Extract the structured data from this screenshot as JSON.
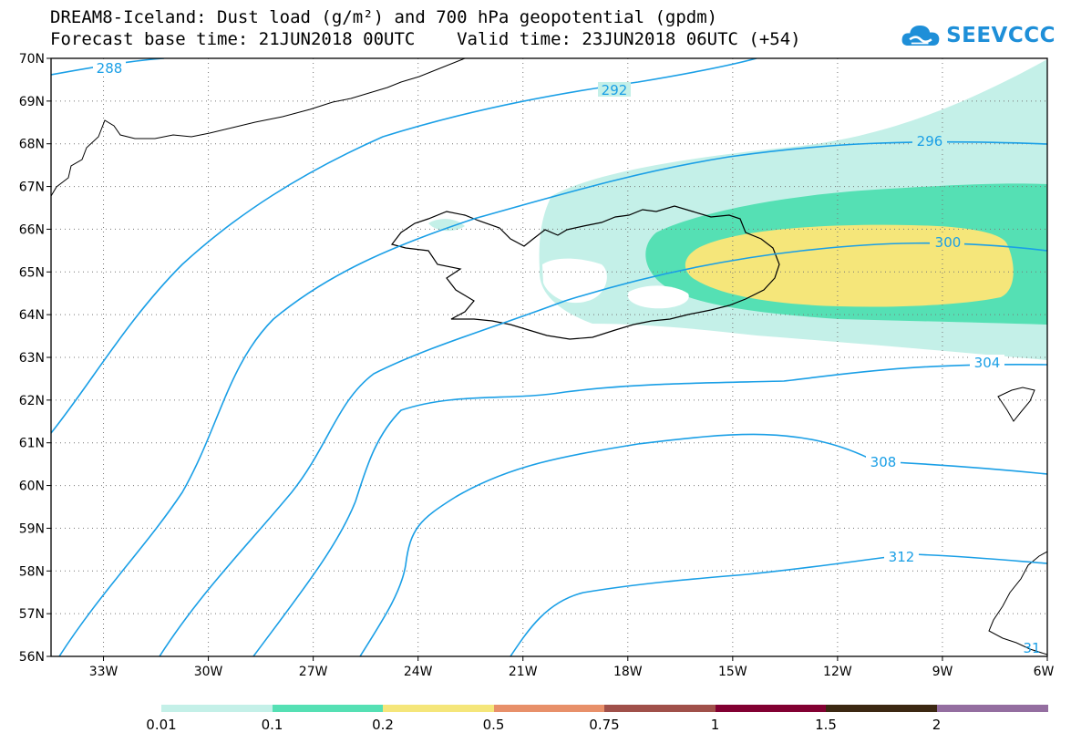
{
  "title": {
    "line1": "DREAM8-Iceland: Dust load (g/m²) and 700 hPa geopotential (gpdm)",
    "line2": "Forecast base time: 21JUN2018 00UTC    Valid time: 23JUN2018 06UTC (+54)"
  },
  "logo": {
    "text": "SEEVCCC",
    "icon": "cloud-logo-icon"
  },
  "map": {
    "lon_range": [
      -34.5,
      -6
    ],
    "lat_range": [
      56,
      70
    ],
    "lon_ticks": [
      "33W",
      "30W",
      "27W",
      "24W",
      "21W",
      "18W",
      "15W",
      "12W",
      "9W",
      "6W"
    ],
    "lat_ticks": [
      "70N",
      "69N",
      "68N",
      "67N",
      "66N",
      "65N",
      "64N",
      "63N",
      "62N",
      "61N",
      "60N",
      "59N",
      "58N",
      "57N",
      "56N"
    ],
    "grid": true,
    "contour_labels": [
      "288",
      "292",
      "296",
      "300",
      "304",
      "308",
      "312",
      "31"
    ],
    "contour_color": "#1a9fe6",
    "dust_colors": {
      "0.01": "#c4f0e8",
      "0.1": "#55e0b4",
      "0.2": "#f5e67a"
    }
  },
  "colorbar": {
    "labels": [
      "0.01",
      "0.1",
      "0.2",
      "0.5",
      "0.75",
      "1",
      "1.5",
      "2"
    ],
    "colors": [
      "#c4f0e8",
      "#55e0b4",
      "#f5e67a",
      "#e8906a",
      "#a0504a",
      "#820032",
      "#3c2812",
      "#946ea0"
    ]
  }
}
